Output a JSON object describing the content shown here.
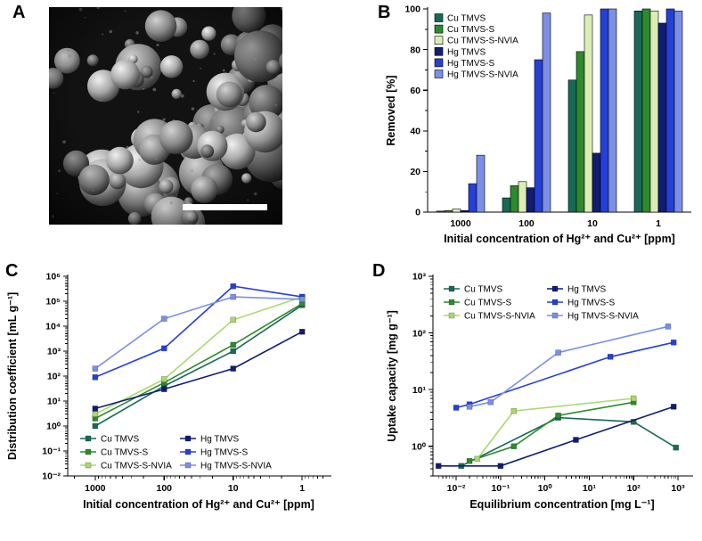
{
  "figure": {
    "panel_a": {
      "label": "A",
      "content": "SEM micrograph of clustered spherical particles with white scale bar"
    },
    "panel_b": {
      "label": "B"
    },
    "panel_c": {
      "label": "C"
    },
    "panel_d": {
      "label": "D"
    }
  },
  "colors": {
    "cu_tmvs": "#186a58",
    "cu_tmvs_s": "#2d8a2d",
    "cu_tmvs_s_nvia_bar": "#dcedb4",
    "cu_tmvs_s_nvia_line": "#a9d96c",
    "hg_tmvs": "#101d72",
    "hg_tmvs_s": "#2540d8",
    "hg_tmvs_s_nvia": "#7b8fe6"
  },
  "chart_data": [
    {
      "id": "panel-b",
      "type": "bar",
      "xlabel": "Initial concentration of Hg²⁺ and Cu²⁺ [ppm]",
      "ylabel": "Removed [%]",
      "categories": [
        "1000",
        "100",
        "10",
        "1"
      ],
      "ylim": [
        0,
        100
      ],
      "yticks": [
        0,
        20,
        40,
        60,
        80,
        100
      ],
      "legend_position": "top-left",
      "series": [
        {
          "name": "Cu TMVS",
          "color": "#186a58",
          "values": [
            0.5,
            7,
            65,
            99
          ]
        },
        {
          "name": "Cu TMVS-S",
          "color": "#2d8a2d",
          "values": [
            0.8,
            13,
            79,
            100
          ]
        },
        {
          "name": "Cu TMVS-S-NVIA",
          "color": "#dcedb4",
          "values": [
            1.5,
            15,
            97,
            99
          ]
        },
        {
          "name": "Hg TMVS",
          "color": "#101d72",
          "values": [
            0.8,
            12,
            29,
            93
          ]
        },
        {
          "name": "Hg TMVS-S",
          "color": "#2540d8",
          "values": [
            14,
            75,
            100,
            100
          ]
        },
        {
          "name": "Hg TMVS-S-NVIA",
          "color": "#7b8fe6",
          "values": [
            28,
            98,
            100,
            99
          ]
        }
      ]
    },
    {
      "id": "panel-c",
      "type": "line",
      "xlabel": "Initial concentration of Hg²⁺ and Cu²⁺ [ppm]",
      "ylabel": "Distribution coefficient [mL g⁻¹]",
      "x": [
        1000,
        100,
        10,
        1
      ],
      "x_reversed": true,
      "xscale": "log",
      "yscale": "log",
      "xlim": [
        0.4,
        2500
      ],
      "xticks": [
        1000,
        100,
        10,
        1
      ],
      "xtick_labels": [
        "1000",
        "100",
        "10",
        "1"
      ],
      "ylim": [
        0.01,
        1000000
      ],
      "yticks": [
        0.01,
        0.1,
        1,
        10,
        100,
        1000,
        10000,
        100000,
        1000000
      ],
      "ytick_labels": [
        "10⁻²",
        "10⁻¹",
        "10⁰",
        "10¹",
        "10²",
        "10³",
        "10⁴",
        "10⁵",
        "10⁶"
      ],
      "legend_position": "bottom-left",
      "series": [
        {
          "name": "Cu TMVS",
          "color": "#186a58",
          "values": [
            1.0,
            40,
            1000,
            70000
          ]
        },
        {
          "name": "Cu TMVS-S",
          "color": "#2d8a2d",
          "values": [
            2.0,
            55,
            1800,
            80000
          ]
        },
        {
          "name": "Cu TMVS-S-NVIA",
          "color": "#a9d96c",
          "values": [
            3.0,
            75,
            18000,
            150000
          ]
        },
        {
          "name": "Hg TMVS",
          "color": "#101d72",
          "values": [
            5.0,
            30,
            200,
            6000
          ]
        },
        {
          "name": "Hg TMVS-S",
          "color": "#2540d8",
          "values": [
            90,
            1300,
            400000,
            150000
          ]
        },
        {
          "name": "Hg TMVS-S-NVIA",
          "color": "#7b8fe6",
          "values": [
            200,
            20000,
            150000,
            120000
          ]
        }
      ]
    },
    {
      "id": "panel-d",
      "type": "line",
      "xlabel": "Equilibrium concentration [mg L⁻¹]",
      "ylabel": "Uptake capacity [mg g⁻¹]",
      "xscale": "log",
      "yscale": "log",
      "xlim": [
        0.003,
        2000
      ],
      "xticks": [
        0.01,
        0.1,
        1,
        10,
        100,
        1000
      ],
      "xtick_labels": [
        "10⁻²",
        "10⁻¹",
        "10⁰",
        "10¹",
        "10²",
        "10³"
      ],
      "ylim": [
        0.3,
        1000
      ],
      "yticks": [
        1,
        10,
        100,
        1000
      ],
      "ytick_labels": [
        "10⁰",
        "10¹",
        "10²",
        "10³"
      ],
      "legend_position": "top-left",
      "series": [
        {
          "name": "Cu TMVS",
          "color": "#186a58",
          "points": [
            [
              0.013,
              0.45
            ],
            [
              2,
              3.2
            ],
            [
              100,
              2.7
            ],
            [
              900,
              0.95
            ]
          ]
        },
        {
          "name": "Cu TMVS-S",
          "color": "#2d8a2d",
          "points": [
            [
              0.02,
              0.55
            ],
            [
              0.2,
              1.0
            ],
            [
              2,
              3.5
            ],
            [
              100,
              6.0
            ]
          ]
        },
        {
          "name": "Cu TMVS-S-NVIA",
          "color": "#a9d96c",
          "points": [
            [
              0.03,
              0.6
            ],
            [
              0.2,
              4.2
            ],
            [
              100,
              7.0
            ]
          ]
        },
        {
          "name": "Hg TMVS",
          "color": "#101d72",
          "points": [
            [
              0.004,
              0.45
            ],
            [
              0.1,
              0.45
            ],
            [
              5,
              1.3
            ],
            [
              800,
              5.0
            ]
          ]
        },
        {
          "name": "Hg TMVS-S",
          "color": "#2540d8",
          "points": [
            [
              0.01,
              4.8
            ],
            [
              0.02,
              5.5
            ],
            [
              30,
              38
            ],
            [
              800,
              68
            ]
          ]
        },
        {
          "name": "Hg TMVS-S-NVIA",
          "color": "#7b8fe6",
          "points": [
            [
              0.02,
              5.0
            ],
            [
              0.06,
              6.0
            ],
            [
              2,
              45
            ],
            [
              600,
              130
            ]
          ]
        }
      ]
    }
  ]
}
